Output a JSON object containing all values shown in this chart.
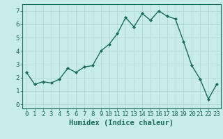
{
  "x": [
    0,
    1,
    2,
    3,
    4,
    5,
    6,
    7,
    8,
    9,
    10,
    11,
    12,
    13,
    14,
    15,
    16,
    17,
    18,
    19,
    20,
    21,
    22,
    23
  ],
  "y": [
    2.4,
    1.5,
    1.7,
    1.6,
    1.9,
    2.7,
    2.4,
    2.8,
    2.9,
    4.0,
    4.5,
    5.3,
    6.5,
    5.8,
    6.8,
    6.3,
    7.0,
    6.6,
    6.4,
    4.7,
    2.9,
    1.9,
    0.4,
    1.5
  ],
  "line_color": "#1a6b5e",
  "marker": "D",
  "marker_size": 2,
  "bg_color": "#c8ecea",
  "grid_color": "#b0d8d4",
  "xlabel": "Humidex (Indice chaleur)",
  "xlim": [
    -0.5,
    23.5
  ],
  "ylim": [
    -0.3,
    7.5
  ],
  "yticks": [
    0,
    1,
    2,
    3,
    4,
    5,
    6,
    7
  ],
  "xticks": [
    0,
    1,
    2,
    3,
    4,
    5,
    6,
    7,
    8,
    9,
    10,
    11,
    12,
    13,
    14,
    15,
    16,
    17,
    18,
    19,
    20,
    21,
    22,
    23
  ],
  "tick_label_size": 6.5,
  "xlabel_size": 7.5,
  "axis_color": "#1a6b5e",
  "spine_color": "#1a6b5e"
}
